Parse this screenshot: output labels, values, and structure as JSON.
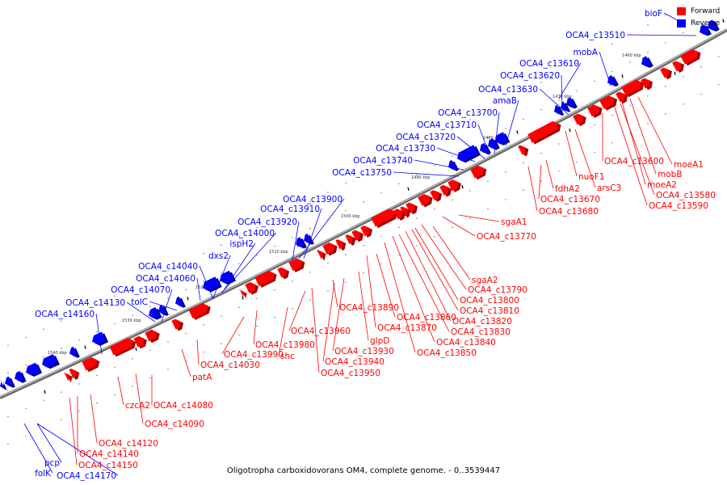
{
  "caption": "Oligotropha carboxidovorans OM4, complete genome. - 0..3539447",
  "legend": {
    "forward_label": "Forward",
    "reverse_label": "Reverse",
    "forward_color": "#ff0000",
    "reverse_color": "#0000ff"
  },
  "scale_ticks": [
    "1460 kbp",
    "1470 kbp",
    "1480 kbp",
    "1490 kbp",
    "1500 kbp",
    "1510 kbp",
    "1520 kbp",
    "1530 kbp",
    "1540 kbp"
  ],
  "reverse_labels": [
    "bioF",
    "OCA4_c13510",
    "mobA",
    "OCA4_c13610",
    "OCA4_c13620",
    "OCA4_c13630",
    "amaB",
    "OCA4_c13700",
    "OCA4_c13710",
    "OCA4_c13720",
    "OCA4_c13730",
    "OCA4_c13740",
    "OCA4_c13750",
    "OCA4_c13900",
    "OCA4_c13910",
    "OCA4_c13920",
    "OCA4_c14000",
    "ispH2",
    "dxs2",
    "OCA4_c14040",
    "OCA4_c14060",
    "OCA4_c14070",
    "tolC",
    "OCA4_c14130",
    "OCA4_c14160",
    "pcp",
    "folK",
    "OCA4_c14170"
  ],
  "forward_labels": [
    "moeA1",
    "mobB",
    "moeA2",
    "OCA4_c13580",
    "OCA4_c13590",
    "OCA4_c13600",
    "nuoF1",
    "arsC3",
    "fdhA2",
    "OCA4_c13670",
    "OCA4_c13680",
    "sgaA1",
    "OCA4_c13770",
    "sgaA2",
    "OCA4_c13790",
    "OCA4_c13800",
    "OCA4_c13810",
    "OCA4_c13820",
    "OCA4_c13830",
    "OCA4_c13840",
    "OCA4_c13850",
    "OCA4_c13860",
    "OCA4_c13870",
    "OCA4_c13890",
    "glpD",
    "OCA4_c13930",
    "OCA4_c13940",
    "OCA4_c13950",
    "OCA4_c13960",
    "OCA4_c13980",
    "OCA4_c13990",
    "shc",
    "OCA4_c14030",
    "patA",
    "OCA4_c14080",
    "OCA4_c14090",
    "czcA2",
    "OCA4_c14120",
    "OCA4_c14140",
    "OCA4_c14150"
  ]
}
